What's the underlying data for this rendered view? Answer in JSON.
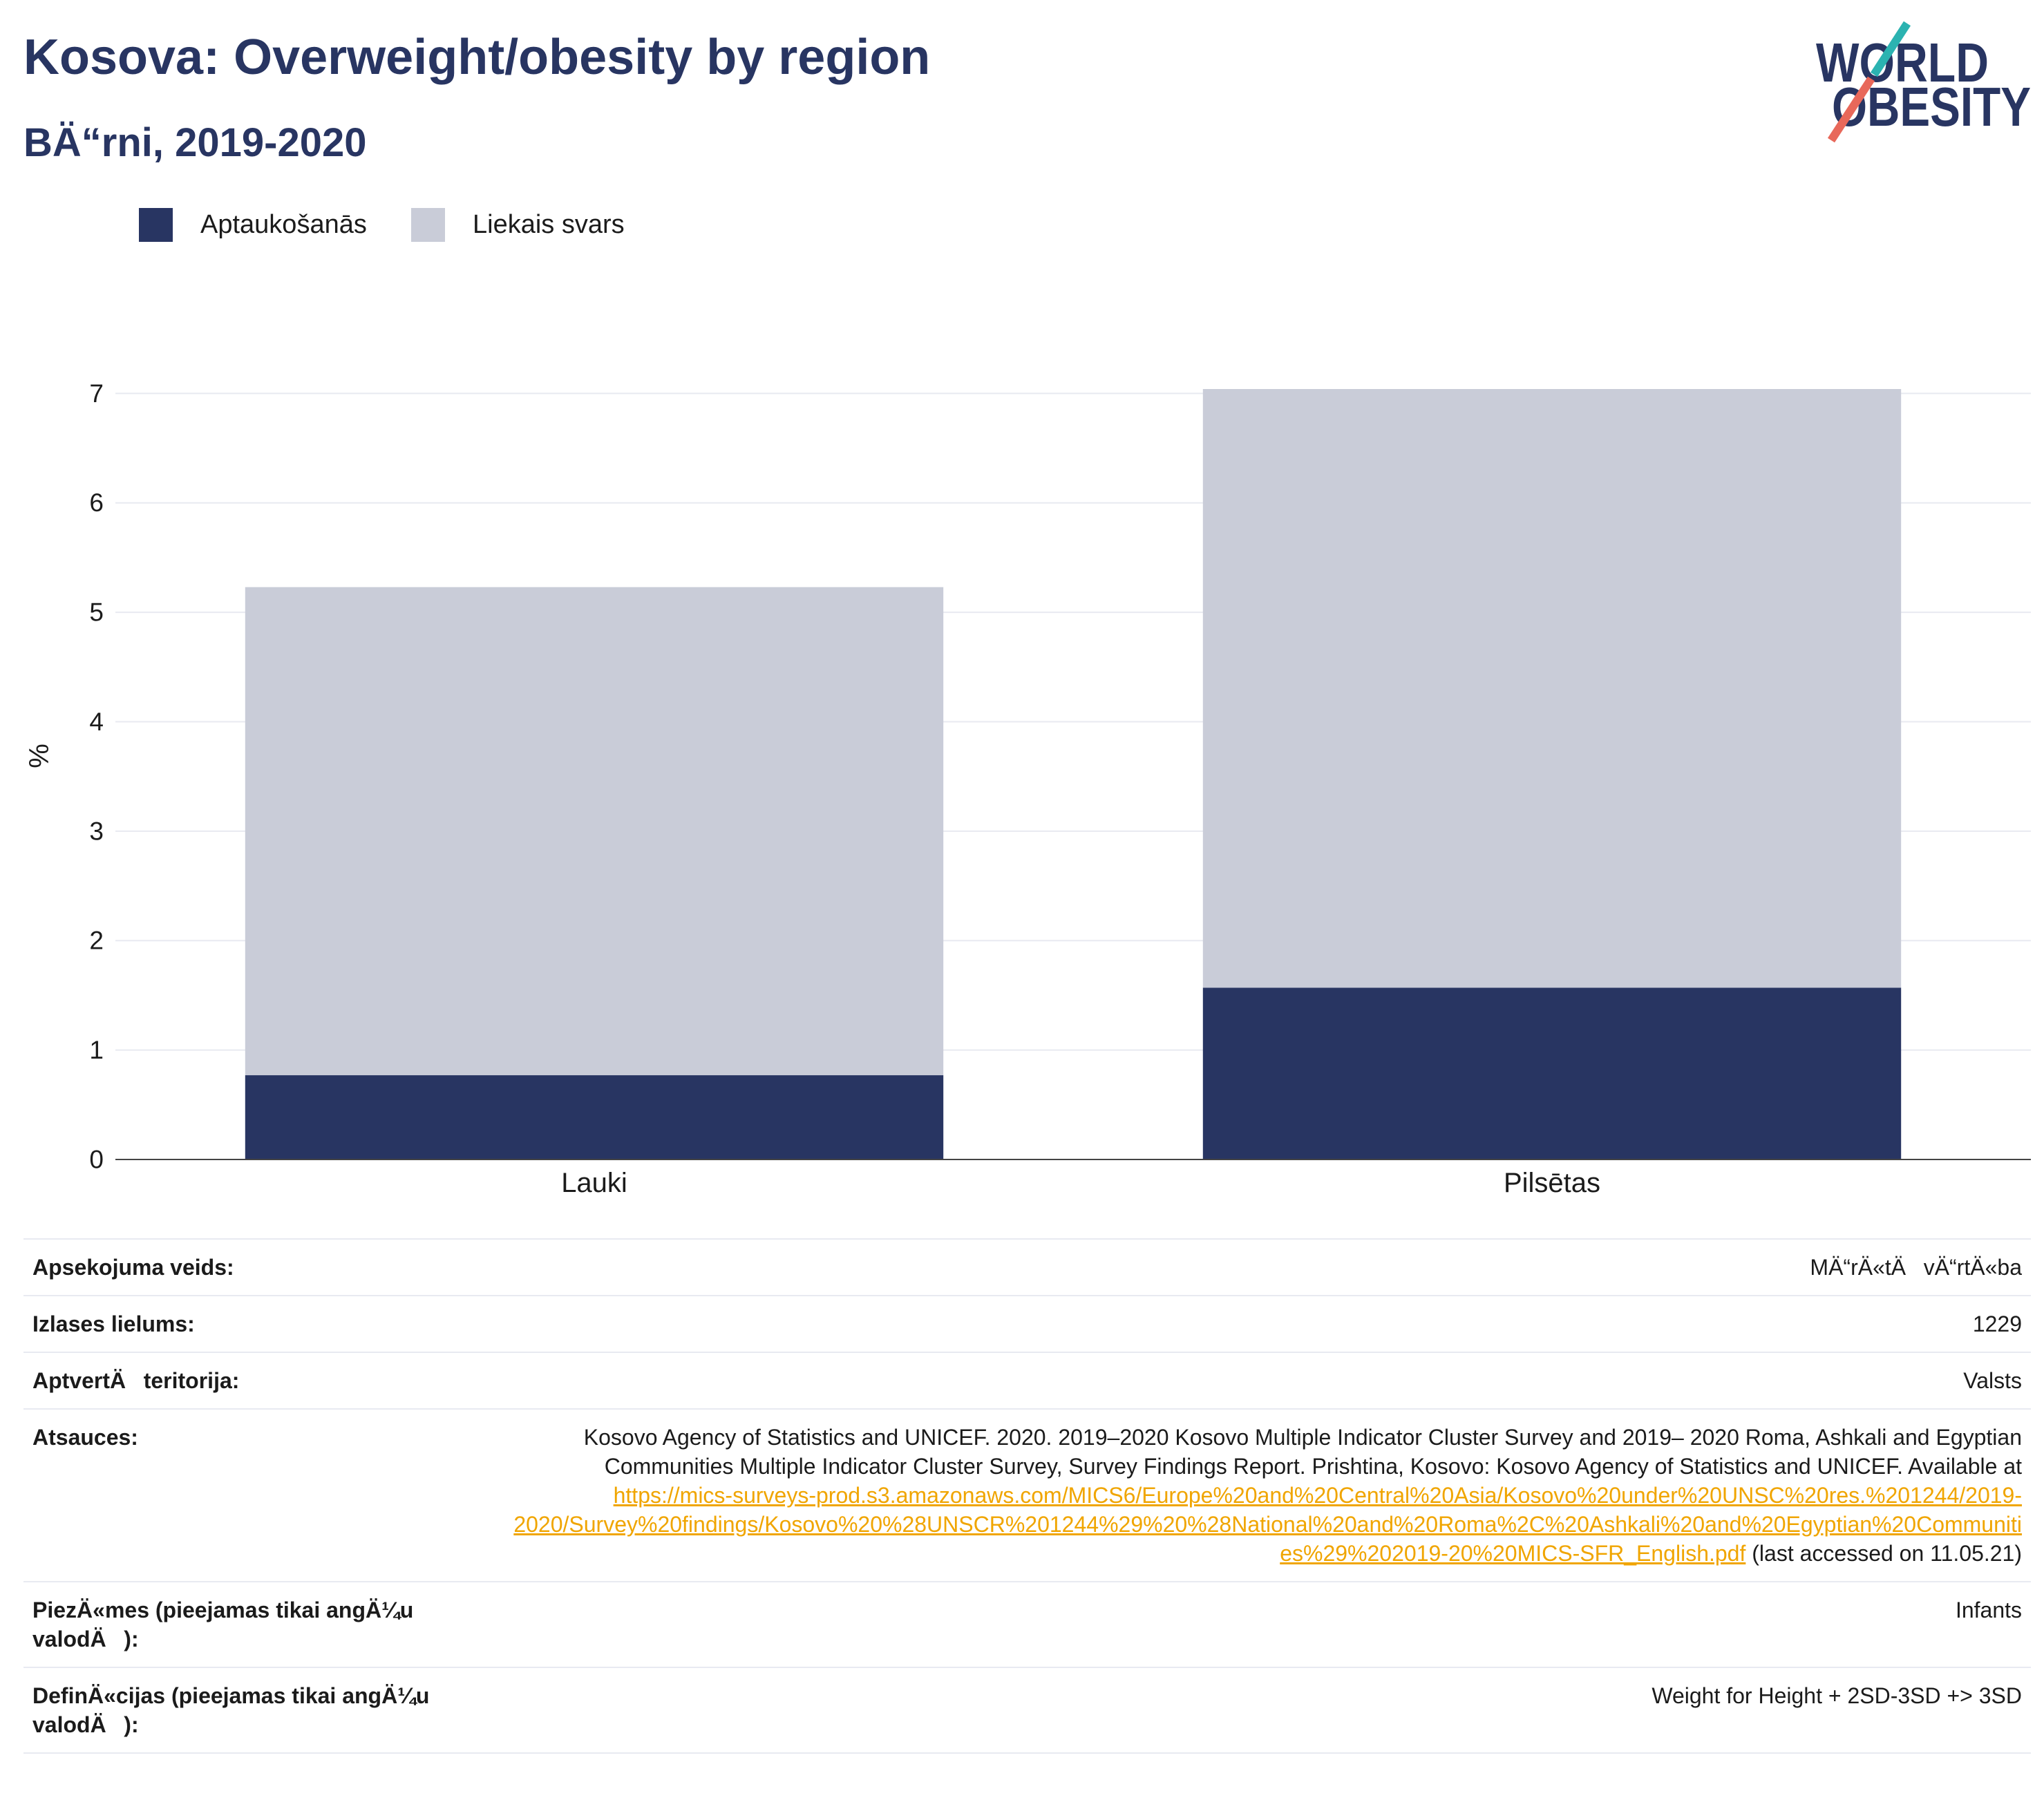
{
  "header": {
    "title": "Kosova: Overweight/obesity by region",
    "subtitle": "BÄ“rni, 2019-2020"
  },
  "logo": {
    "line1": "WORLD",
    "line2": "OBESITY",
    "colors": {
      "text": "#283562",
      "slash_top": "#2bb3b1",
      "slash_bottom": "#e8685a"
    }
  },
  "chart_data": {
    "type": "bar",
    "stacked": true,
    "categories": [
      "Lauki",
      "Pilsētas"
    ],
    "series": [
      {
        "name": "Aptaukošanās",
        "values": [
          0.77,
          1.57
        ],
        "color": "#283562"
      },
      {
        "name": "Liekais svars",
        "values": [
          4.46,
          5.47
        ],
        "color": "#c9ccd8"
      }
    ],
    "ylabel": "%",
    "yticks": [
      0,
      1,
      2,
      3,
      4,
      5,
      6,
      7
    ],
    "ylim": [
      0,
      7.04
    ],
    "grid": true,
    "legend_position": "top-left"
  },
  "info": {
    "survey_type": {
      "label": "Apsekojuma veids:",
      "value": "MÄ“rÄ«tÄvÄ“rtÄ«ba"
    },
    "sample_size": {
      "label": "Izlases lielums:",
      "value": "1229"
    },
    "coverage": {
      "label": "AptvertÄteritorija:",
      "value": "Valsts"
    },
    "references": {
      "label": "Atsauces:",
      "text": "Kosovo Agency of Statistics and UNICEF. 2020. 2019–2020 Kosovo Multiple Indicator Cluster Survey and 2019– 2020 Roma, Ashkali and Egyptian Communities Multiple Indicator Cluster Survey, Survey Findings Report. Prishtina, Kosovo: Kosovo Agency of Statistics and UNICEF. Available at ",
      "link": "https://mics-surveys-prod.s3.amazonaws.com/MICS6/Europe%20and%20Central%20Asia/Kosovo%20under%20UNSC%20res.%201244/2019-2020/Survey%20findings/Kosovo%20%28UNSCR%201244%29%20%28National%20and%20Roma%2C%20Ashkali%20and%20Egyptian%20Communities%29%202019-20%20MICS-SFR_English.pdf",
      "after": " (last accessed on 11.05.21)"
    },
    "notes": {
      "label": "PiezÄ«mes (pieejamas tikai angÄ¼u valodÄ):",
      "value": "Infants"
    },
    "definitions": {
      "label": "DefinÄ«cijas (pieejamas tikai angÄ¼u valodÄ):",
      "value": "Weight for Height + 2SD-3SD +> 3SD"
    }
  }
}
